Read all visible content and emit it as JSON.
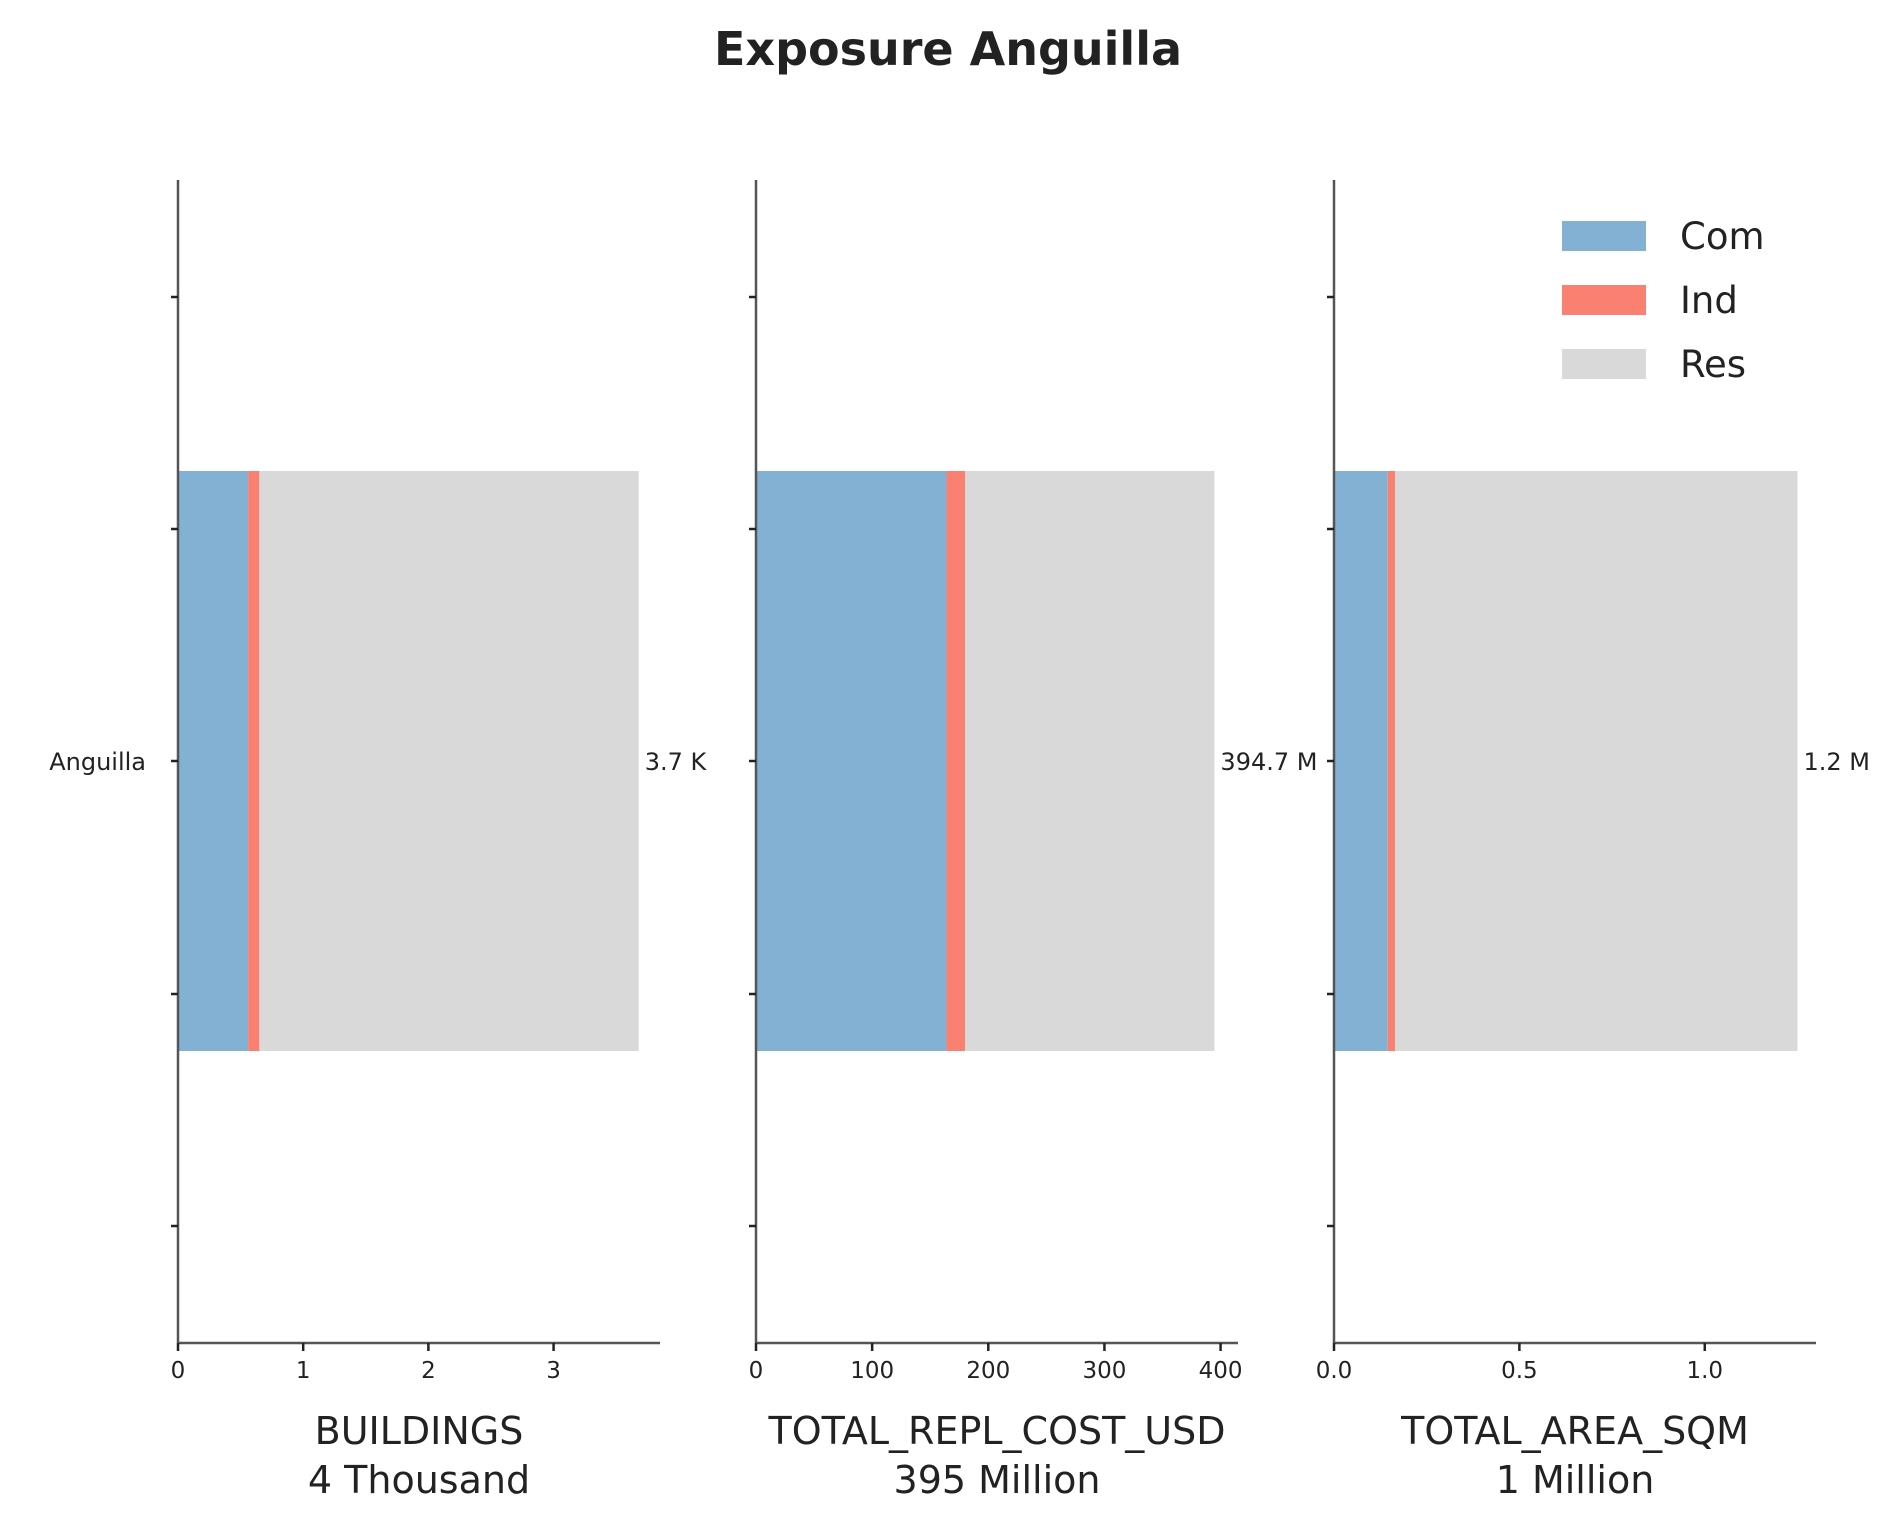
{
  "chart_data": {
    "type": "bar",
    "orientation": "horizontal",
    "stacked": true,
    "title": "Exposure Anguilla",
    "category": "Anguilla",
    "series_names": [
      "Com",
      "Ind",
      "Res"
    ],
    "colors": {
      "Com": "#82b1d3",
      "Ind": "#fa8072",
      "Res": "#d9d9d9"
    },
    "legend": {
      "placement": "top-right",
      "entries": [
        "Com",
        "Ind",
        "Res"
      ]
    },
    "grid": false,
    "panels": [
      {
        "xlabel": "BUILDINGS",
        "subtitle": "4 Thousand",
        "units": "Thousand",
        "xlim": [
          0,
          3.85
        ],
        "xticks": [
          0,
          1,
          2,
          3
        ],
        "xtick_labels": [
          "0",
          "1",
          "2",
          "3"
        ],
        "values": {
          "Com": 0.56,
          "Ind": 0.09,
          "Res": 3.03
        },
        "total_label": "3.7 K"
      },
      {
        "xlabel": "TOTAL_REPL_COST_USD",
        "subtitle": "395 Million",
        "units": "Million",
        "xlim": [
          0,
          415
        ],
        "xticks": [
          0,
          100,
          200,
          300,
          400
        ],
        "xtick_labels": [
          "0",
          "100",
          "200",
          "300",
          "400"
        ],
        "values": {
          "Com": 164,
          "Ind": 16,
          "Res": 214.7
        },
        "total_label": "394.7 M"
      },
      {
        "xlabel": "TOTAL_AREA_SQM",
        "subtitle": "1 Million",
        "units": "Million",
        "xlim": [
          0,
          1.3
        ],
        "xticks": [
          0.0,
          0.5,
          1.0
        ],
        "xtick_labels": [
          "0.0",
          "0.5",
          "1.0"
        ],
        "values": {
          "Com": 0.145,
          "Ind": 0.02,
          "Res": 1.085
        },
        "total_label": "1.2 M"
      }
    ]
  }
}
